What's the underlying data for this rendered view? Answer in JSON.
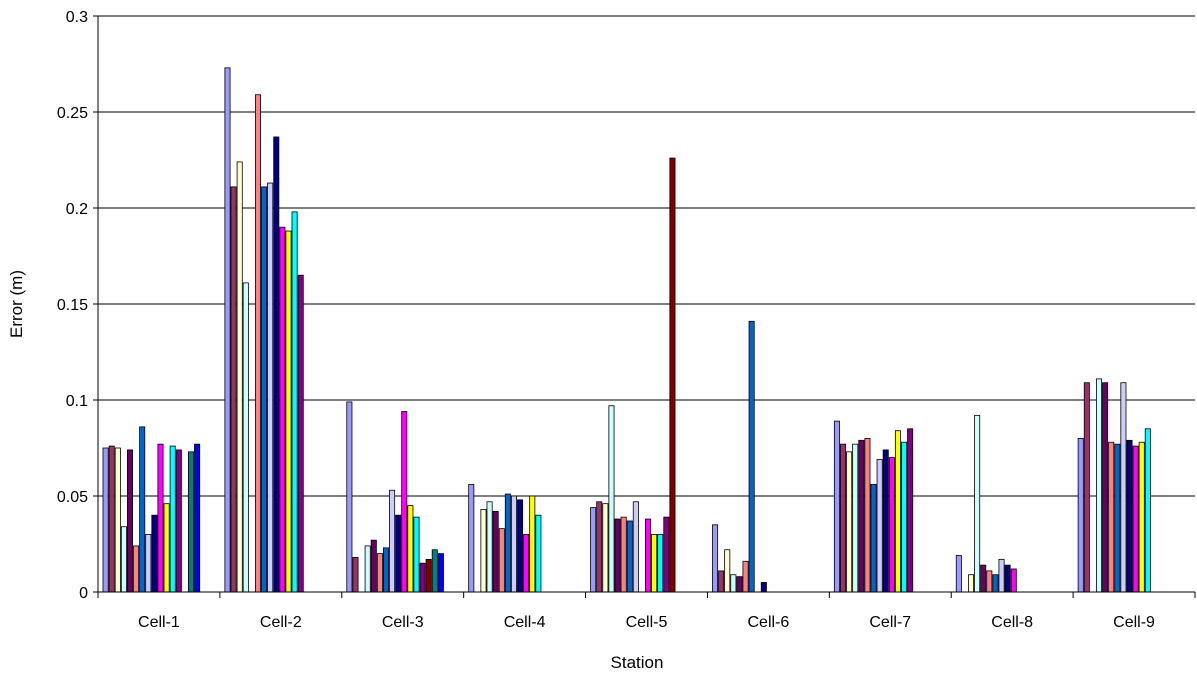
{
  "chart_data": {
    "type": "bar",
    "title": "",
    "xlabel": "Station",
    "ylabel": "Error (m)",
    "ylim": [
      0,
      0.3
    ],
    "yticks": [
      "0",
      "0.05",
      "0.1",
      "0.15",
      "0.2",
      "0.25",
      "0.3"
    ],
    "grid": "horizontal",
    "categories": [
      "Cell-1",
      "Cell-2",
      "Cell-3",
      "Cell-4",
      "Cell-5",
      "Cell-6",
      "Cell-7",
      "Cell-8",
      "Cell-9"
    ],
    "series_colors": [
      "#9999ff",
      "#993366",
      "#ffffcc",
      "#ccffff",
      "#660066",
      "#ff8080",
      "#0066cc",
      "#ccccff",
      "#000080",
      "#ff00ff",
      "#ffff00",
      "#00ffff",
      "#800080",
      "#800000",
      "#008080",
      "#0000ff"
    ],
    "series": [
      {
        "values": [
          0.075,
          0.273,
          0.099,
          0.056,
          0.044,
          0.035,
          0.089,
          0.019,
          0.08
        ]
      },
      {
        "values": [
          0.076,
          0.211,
          0.018,
          0.0,
          0.047,
          0.011,
          0.077,
          0.0,
          0.109
        ]
      },
      {
        "values": [
          0.075,
          0.224,
          0.0,
          0.043,
          0.046,
          0.022,
          0.073,
          0.009,
          0.0
        ]
      },
      {
        "values": [
          0.034,
          0.161,
          0.024,
          0.047,
          0.097,
          0.009,
          0.077,
          0.092,
          0.111
        ]
      },
      {
        "values": [
          0.074,
          0.0,
          0.027,
          0.042,
          0.038,
          0.008,
          0.079,
          0.014,
          0.109
        ]
      },
      {
        "values": [
          0.024,
          0.259,
          0.02,
          0.033,
          0.039,
          0.016,
          0.08,
          0.011,
          0.078
        ]
      },
      {
        "values": [
          0.086,
          0.211,
          0.023,
          0.051,
          0.037,
          0.141,
          0.056,
          0.009,
          0.077
        ]
      },
      {
        "values": [
          0.03,
          0.213,
          0.053,
          0.05,
          0.047,
          0.0,
          0.069,
          0.017,
          0.109
        ]
      },
      {
        "values": [
          0.04,
          0.237,
          0.04,
          0.048,
          0.0,
          0.005,
          0.074,
          0.014,
          0.079
        ]
      },
      {
        "values": [
          0.077,
          0.19,
          0.094,
          0.03,
          0.038,
          0.0,
          0.07,
          0.012,
          0.076
        ]
      },
      {
        "values": [
          0.046,
          0.188,
          0.045,
          0.05,
          0.03,
          0.0,
          0.084,
          0.0,
          0.078
        ]
      },
      {
        "values": [
          0.076,
          0.198,
          0.039,
          0.04,
          0.03,
          0.0,
          0.078,
          0.0,
          0.085
        ]
      },
      {
        "values": [
          0.074,
          0.165,
          0.015,
          0.0,
          0.039,
          0.0,
          0.085,
          0.0,
          0.0
        ]
      },
      {
        "values": [
          0.0,
          0.0,
          0.017,
          0.0,
          0.226,
          0.0,
          0.0,
          0.0,
          0.0
        ]
      },
      {
        "values": [
          0.073,
          0.0,
          0.022,
          0.0,
          0.0,
          0.0,
          0.0,
          0.0,
          0.0
        ]
      },
      {
        "values": [
          0.077,
          0.0,
          0.02,
          0.0,
          0.0,
          0.0,
          0.0,
          0.0,
          0.0
        ]
      }
    ]
  }
}
